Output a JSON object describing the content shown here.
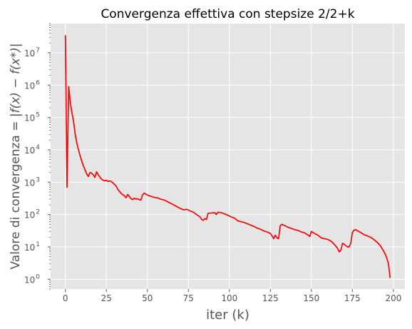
{
  "chart_data": {
    "type": "line",
    "title": "Convergenza effettiva con stepsize 2/2+k",
    "xlabel": "iter  (k)",
    "ylabel_prefix": "Valore di convergenza = |",
    "ylabel_math": "f(x) − f(x*)",
    "ylabel_suffix": "|",
    "xlim": [
      -9,
      207
    ],
    "ylim": [
      0.5,
      80000000
    ],
    "yscale": "log",
    "grid": true,
    "x_ticks": [
      0,
      25,
      50,
      75,
      100,
      125,
      150,
      175,
      200
    ],
    "x_tick_labels": [
      "0",
      "25",
      "50",
      "75",
      "100",
      "125",
      "150",
      "175",
      "200"
    ],
    "y_tick_exponents": [
      0,
      1,
      2,
      3,
      4,
      5,
      6,
      7
    ],
    "series": [
      {
        "color": "#ff0000",
        "points": [
          [
            0,
            35000000
          ],
          [
            1,
            700
          ],
          [
            2,
            900000
          ],
          [
            3,
            300000
          ],
          [
            4,
            140000
          ],
          [
            5,
            75000
          ],
          [
            6,
            30000
          ],
          [
            7,
            16000
          ],
          [
            8,
            10000
          ],
          [
            9,
            6500
          ],
          [
            10,
            4500
          ],
          [
            11,
            3200
          ],
          [
            12,
            2400
          ],
          [
            13,
            1800
          ],
          [
            14,
            1500
          ],
          [
            15,
            2000
          ],
          [
            16,
            1900
          ],
          [
            17,
            1700
          ],
          [
            18,
            1400
          ],
          [
            19,
            2100
          ],
          [
            20,
            1700
          ],
          [
            21,
            1450
          ],
          [
            22,
            1250
          ],
          [
            23,
            1150
          ],
          [
            24,
            1100
          ],
          [
            25,
            1150
          ],
          [
            26,
            1050
          ],
          [
            27,
            1100
          ],
          [
            28,
            1050
          ],
          [
            29,
            950
          ],
          [
            30,
            850
          ],
          [
            31,
            750
          ],
          [
            32,
            600
          ],
          [
            33,
            520
          ],
          [
            34,
            450
          ],
          [
            35,
            410
          ],
          [
            36,
            380
          ],
          [
            37,
            330
          ],
          [
            38,
            420
          ],
          [
            39,
            360
          ],
          [
            40,
            310
          ],
          [
            41,
            290
          ],
          [
            42,
            320
          ],
          [
            43,
            300
          ],
          [
            44,
            310
          ],
          [
            45,
            290
          ],
          [
            46,
            280
          ],
          [
            47,
            400
          ],
          [
            48,
            460
          ],
          [
            49,
            430
          ],
          [
            50,
            400
          ],
          [
            52,
            370
          ],
          [
            54,
            340
          ],
          [
            56,
            330
          ],
          [
            58,
            300
          ],
          [
            60,
            285
          ],
          [
            62,
            255
          ],
          [
            64,
            225
          ],
          [
            66,
            200
          ],
          [
            68,
            175
          ],
          [
            70,
            155
          ],
          [
            72,
            140
          ],
          [
            74,
            145
          ],
          [
            76,
            130
          ],
          [
            78,
            118
          ],
          [
            80,
            100
          ],
          [
            82,
            85
          ],
          [
            83,
            72
          ],
          [
            84,
            66
          ],
          [
            85,
            75
          ],
          [
            86,
            70
          ],
          [
            87,
            110
          ],
          [
            89,
            112
          ],
          [
            91,
            115
          ],
          [
            92,
            100
          ],
          [
            93,
            118
          ],
          [
            95,
            115
          ],
          [
            97,
            105
          ],
          [
            99,
            95
          ],
          [
            101,
            85
          ],
          [
            103,
            78
          ],
          [
            105,
            65
          ],
          [
            107,
            60
          ],
          [
            109,
            57
          ],
          [
            111,
            52
          ],
          [
            113,
            47
          ],
          [
            115,
            43
          ],
          [
            117,
            38
          ],
          [
            119,
            35
          ],
          [
            121,
            31
          ],
          [
            123,
            29
          ],
          [
            125,
            26
          ],
          [
            126,
            22
          ],
          [
            127,
            18
          ],
          [
            128,
            23
          ],
          [
            129,
            19
          ],
          [
            130,
            18
          ],
          [
            131,
            45
          ],
          [
            132,
            50
          ],
          [
            134,
            45
          ],
          [
            136,
            40
          ],
          [
            138,
            37
          ],
          [
            140,
            34
          ],
          [
            142,
            32
          ],
          [
            144,
            29
          ],
          [
            146,
            27
          ],
          [
            148,
            23
          ],
          [
            149,
            21
          ],
          [
            150,
            30
          ],
          [
            152,
            26
          ],
          [
            154,
            23
          ],
          [
            156,
            19
          ],
          [
            158,
            18
          ],
          [
            160,
            17
          ],
          [
            162,
            15
          ],
          [
            164,
            12
          ],
          [
            166,
            9
          ],
          [
            167,
            7
          ],
          [
            168,
            8
          ],
          [
            169,
            13
          ],
          [
            170,
            12
          ],
          [
            171,
            11
          ],
          [
            172,
            10
          ],
          [
            173,
            10
          ],
          [
            174,
            13
          ],
          [
            175,
            28
          ],
          [
            176,
            33
          ],
          [
            177,
            34
          ],
          [
            178,
            32
          ],
          [
            180,
            28
          ],
          [
            182,
            24
          ],
          [
            184,
            22
          ],
          [
            186,
            20
          ],
          [
            188,
            17
          ],
          [
            190,
            14
          ],
          [
            192,
            11
          ],
          [
            194,
            7.5
          ],
          [
            195,
            6
          ],
          [
            196,
            4.5
          ],
          [
            197,
            3
          ],
          [
            198,
            1.1
          ]
        ]
      }
    ]
  }
}
